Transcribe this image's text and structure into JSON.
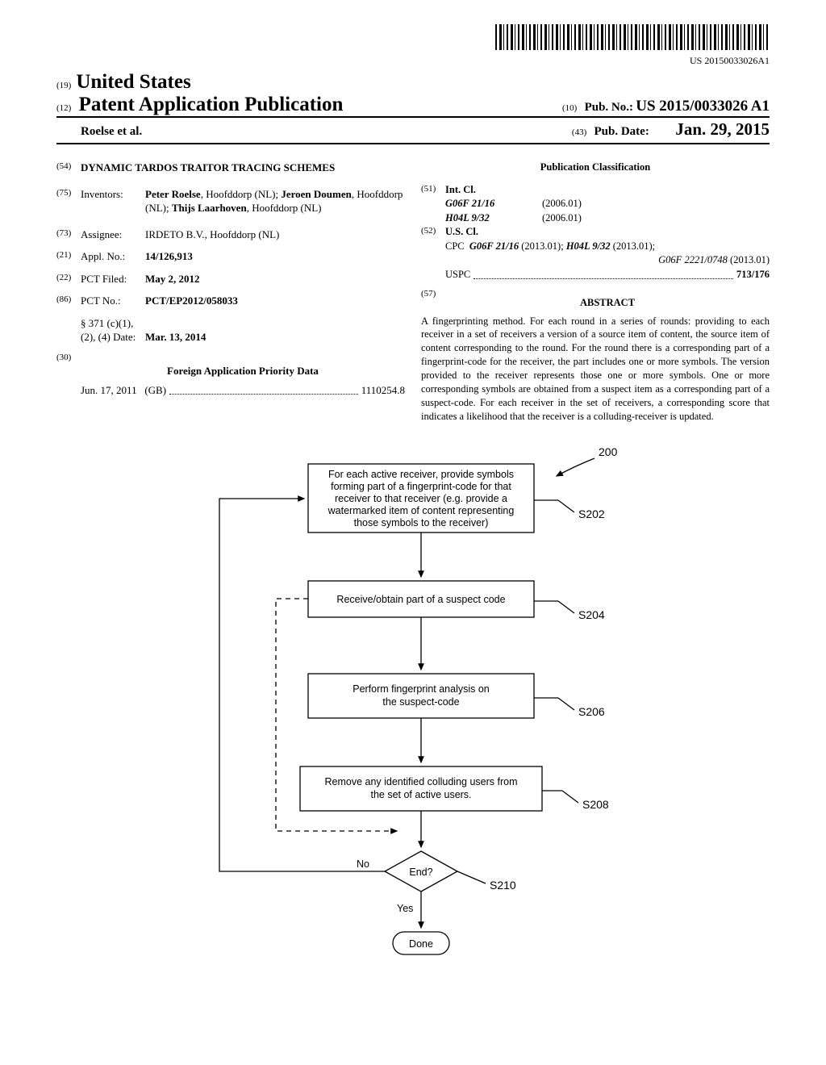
{
  "barcode_text": "US 20150033026A1",
  "header": {
    "country_code": "(19)",
    "country": "United States",
    "pub_type_code": "(12)",
    "pub_type": "Patent Application Publication",
    "authors": "Roelse et al.",
    "pub_no_code": "(10)",
    "pub_no_label": "Pub. No.:",
    "pub_no": "US 2015/0033026 A1",
    "pub_date_code": "(43)",
    "pub_date_label": "Pub. Date:",
    "pub_date": "Jan. 29, 2015"
  },
  "left": {
    "title_code": "(54)",
    "title": "DYNAMIC TARDOS TRAITOR TRACING SCHEMES",
    "inventors_code": "(75)",
    "inventors_label": "Inventors:",
    "inventors_html": "Peter Roelse|, Hoofddorp (NL); |Jeroen Doumen|, Hoofddorp (NL); |Thijs Laarhoven|, Hoofddorp (NL)",
    "assignee_code": "(73)",
    "assignee_label": "Assignee:",
    "assignee_name": "IRDETO B.V.",
    "assignee_loc": ", Hoofddorp (NL)",
    "appl_no_code": "(21)",
    "appl_no_label": "Appl. No.:",
    "appl_no": "14/126,913",
    "pct_filed_code": "(22)",
    "pct_filed_label": "PCT Filed:",
    "pct_filed": "May 2, 2012",
    "pct_no_code": "(86)",
    "pct_no_label": "PCT No.:",
    "pct_no": "PCT/EP2012/058033",
    "s371_label1": "§ 371 (c)(1),",
    "s371_label2": "(2), (4) Date:",
    "s371_date": "Mar. 13, 2014",
    "foreign_code": "(30)",
    "foreign_heading": "Foreign Application Priority Data",
    "foreign_date": "Jun. 17, 2011",
    "foreign_country": "(GB)",
    "foreign_num": "1110254.8"
  },
  "right": {
    "class_heading": "Publication Classification",
    "intcl_code": "(51)",
    "intcl_label": "Int. Cl.",
    "intcl_1": "G06F 21/16",
    "intcl_1_date": "(2006.01)",
    "intcl_2": "H04L 9/32",
    "intcl_2_date": "(2006.01)",
    "uscl_code": "(52)",
    "uscl_label": "U.S. Cl.",
    "cpc_label": "CPC",
    "cpc_1": "G06F 21/16",
    "cpc_1_date": "(2013.01);",
    "cpc_2": "H04L 9/32",
    "cpc_2_date": "(2013.01);",
    "cpc_3": "G06F 2221/0748",
    "cpc_3_date": "(2013.01)",
    "uspc_label": "USPC",
    "uspc_val": "713/176",
    "abstract_code": "(57)",
    "abstract_heading": "ABSTRACT",
    "abstract": "A fingerprinting method. For each round in a series of rounds: providing to each receiver in a set of receivers a version of a source item of content, the source item of content corresponding to the round. For the round there is a corresponding part of a fingerprint-code for the receiver, the part includes one or more symbols. The version provided to the receiver represents those one or more symbols. One or more corresponding symbols are obtained from a suspect item as a corresponding part of a suspect-code. For each receiver in the set of receivers, a corresponding score that indicates a likelihood that the receiver is a colluding-receiver is updated."
  },
  "flowchart": {
    "ref_200": "200",
    "s202": {
      "l1": "For each active receiver, provide symbols",
      "l2": "forming part of a fingerprint-code for that",
      "l3": "receiver to that receiver (e.g. provide a",
      "l4": "watermarked item of content representing",
      "l5": "those symbols to the receiver)",
      "label": "S202"
    },
    "s204": {
      "text": "Receive/obtain part of a suspect code",
      "label": "S204"
    },
    "s206": {
      "l1": "Perform fingerprint analysis on",
      "l2": "the suspect-code",
      "label": "S206"
    },
    "s208": {
      "l1": "Remove any identified colluding users from",
      "l2": "the set of active users.",
      "label": "S208"
    },
    "s210": {
      "text": "End?",
      "label": "S210",
      "no": "No",
      "yes": "Yes"
    },
    "done": "Done"
  }
}
